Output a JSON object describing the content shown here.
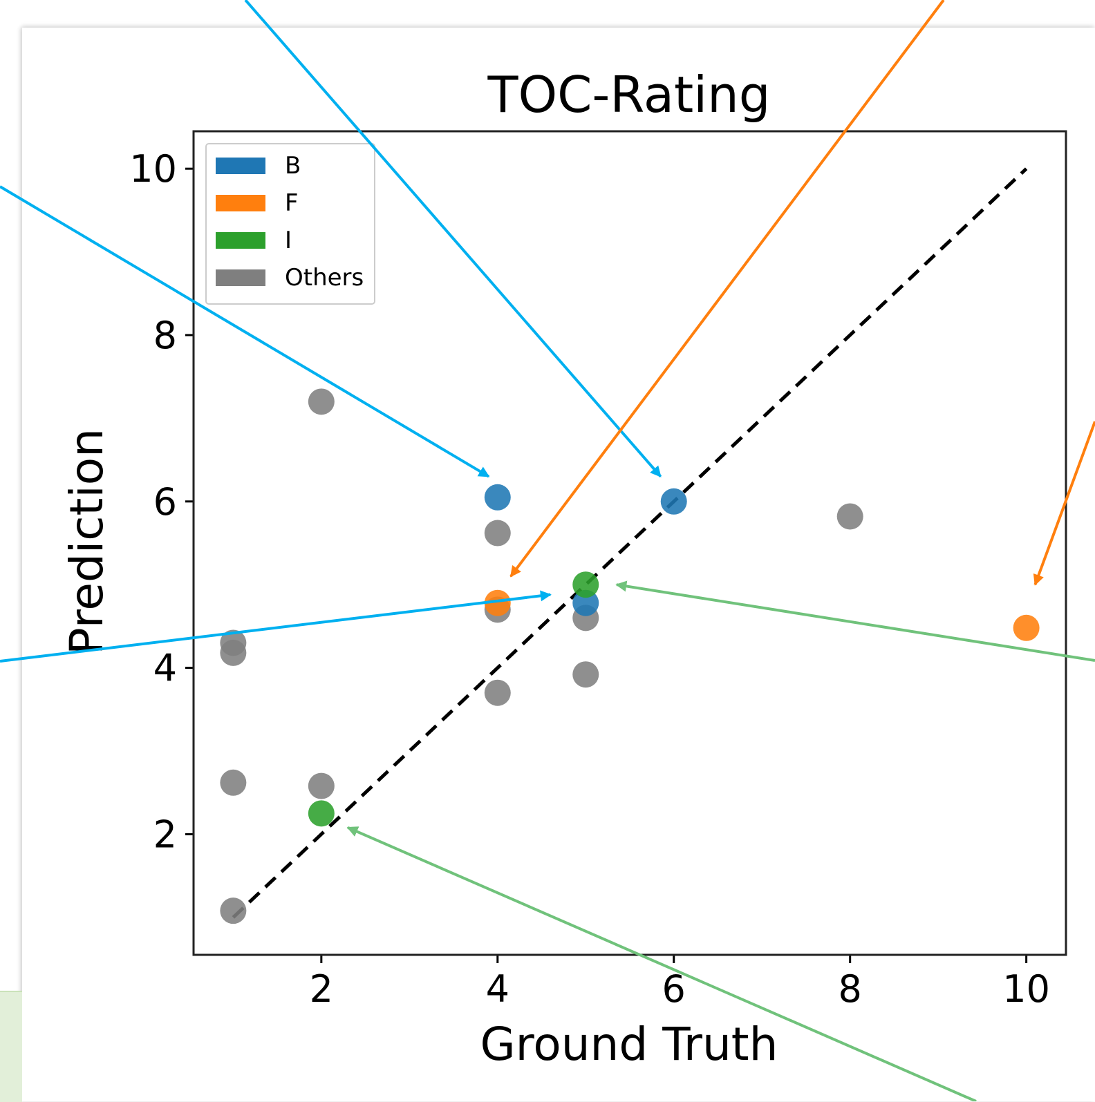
{
  "chart_data": {
    "type": "scatter",
    "title": "TOC-Rating",
    "xlabel": "Ground Truth",
    "ylabel": "Prediction",
    "xlim": [
      0.55,
      10.45
    ],
    "ylim": [
      0.55,
      10.45
    ],
    "xticks": [
      2,
      4,
      6,
      8,
      10
    ],
    "yticks": [
      2,
      4,
      6,
      8,
      10
    ],
    "grid": false,
    "legend_position": "upper-left",
    "reference_line": {
      "style": "dashed",
      "color": "#000000",
      "from": [
        1,
        1
      ],
      "to": [
        10,
        10
      ]
    },
    "series": [
      {
        "name": "Others",
        "color": "#7f7f7f",
        "points": [
          [
            2,
            7.2
          ],
          [
            4,
            5.62
          ],
          [
            4,
            4.7
          ],
          [
            4,
            3.7
          ],
          [
            5,
            4.6
          ],
          [
            5,
            3.92
          ],
          [
            8,
            5.82
          ],
          [
            1,
            4.3
          ],
          [
            1,
            4.18
          ],
          [
            1,
            2.62
          ],
          [
            2,
            2.58
          ],
          [
            1,
            1.08
          ]
        ]
      },
      {
        "name": "B",
        "color": "#1f77b4",
        "points": [
          [
            4,
            6.05
          ],
          [
            6,
            6.0
          ],
          [
            5,
            4.78
          ]
        ]
      },
      {
        "name": "F",
        "color": "#ff7f0e",
        "points": [
          [
            4,
            4.78
          ],
          [
            10,
            4.48
          ]
        ]
      },
      {
        "name": "I",
        "color": "#2ca02c",
        "points": [
          [
            5,
            5.0
          ],
          [
            2,
            2.25
          ]
        ]
      }
    ],
    "legend": [
      {
        "label": "B",
        "color": "#1f77b4"
      },
      {
        "label": "F",
        "color": "#ff7f0e"
      },
      {
        "label": "I",
        "color": "#2ca02c"
      },
      {
        "label": "Others",
        "color": "#7f7f7f"
      }
    ]
  },
  "annotation_arrows": [
    {
      "color": "#00b0f0",
      "target": [
        3.9,
        6.3
      ]
    },
    {
      "color": "#00b0f0",
      "target": [
        5.85,
        6.3
      ]
    },
    {
      "color": "#00b0f0",
      "target": [
        4.6,
        4.88
      ]
    },
    {
      "color": "#ff7f0e",
      "target": [
        4.15,
        5.1
      ]
    },
    {
      "color": "#ff7f0e",
      "target": [
        10.1,
        5.0
      ]
    },
    {
      "color": "#70c27b",
      "target": [
        5.35,
        5.0
      ]
    },
    {
      "color": "#70c27b",
      "target": [
        2.3,
        2.08
      ]
    }
  ]
}
